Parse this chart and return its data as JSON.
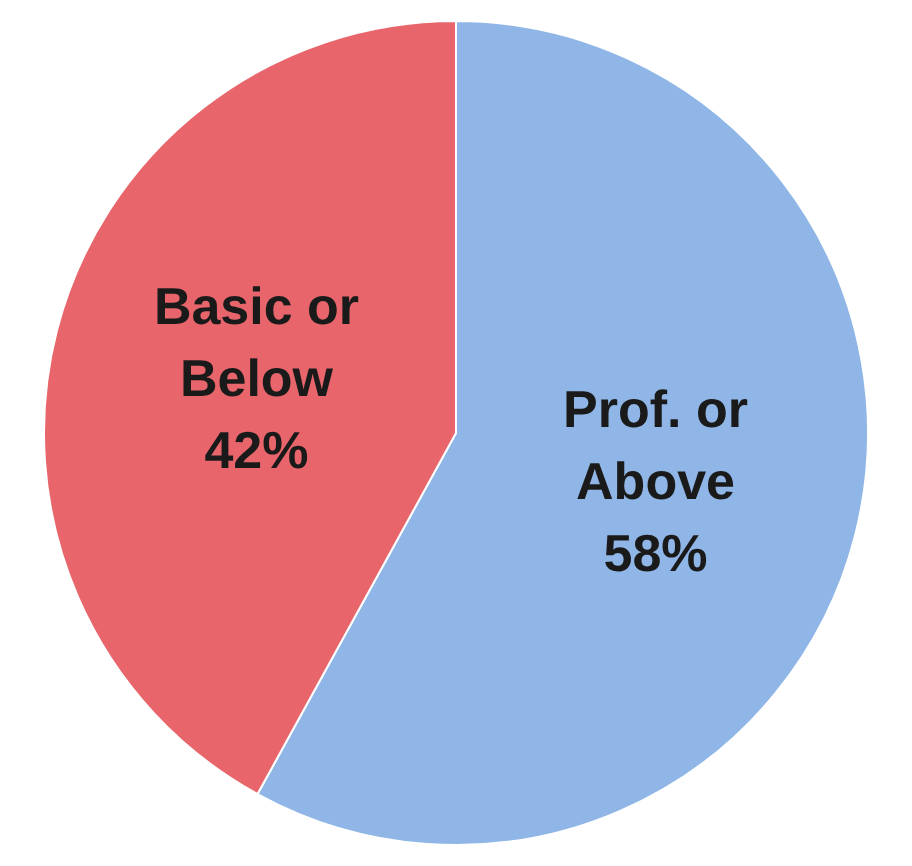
{
  "chart_data": {
    "type": "pie",
    "categories": [
      "Prof. or Above",
      "Basic or Below"
    ],
    "values": [
      58,
      42
    ],
    "colors": [
      "#8fb6e6",
      "#e8666b"
    ],
    "value_labels": [
      "58%",
      "42%"
    ],
    "legend": false
  }
}
